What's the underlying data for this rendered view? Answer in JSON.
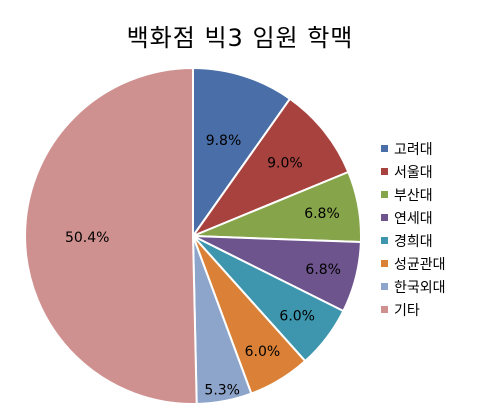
{
  "chart_data": {
    "type": "pie",
    "title": "백화점 빅3 임원 학맥",
    "categories": [
      "고려대",
      "서울대",
      "부산대",
      "연세대",
      "경희대",
      "성균관대",
      "한국외대",
      "기타"
    ],
    "values": [
      9.8,
      9.0,
      6.8,
      6.8,
      6.0,
      6.0,
      5.3,
      50.4
    ],
    "labels": [
      "9.8%",
      "9.0%",
      "6.8%",
      "6.8%",
      "6.0%",
      "6.0%",
      "5.3%",
      "50.4%"
    ],
    "colors": [
      "#4A6EA8",
      "#A8423F",
      "#86A44A",
      "#6E548D",
      "#3D96AE",
      "#DA8137",
      "#8EA5CB",
      "#CF918F"
    ],
    "start_angle_deg": 0,
    "direction": "clockwise",
    "legend_position": "right"
  }
}
